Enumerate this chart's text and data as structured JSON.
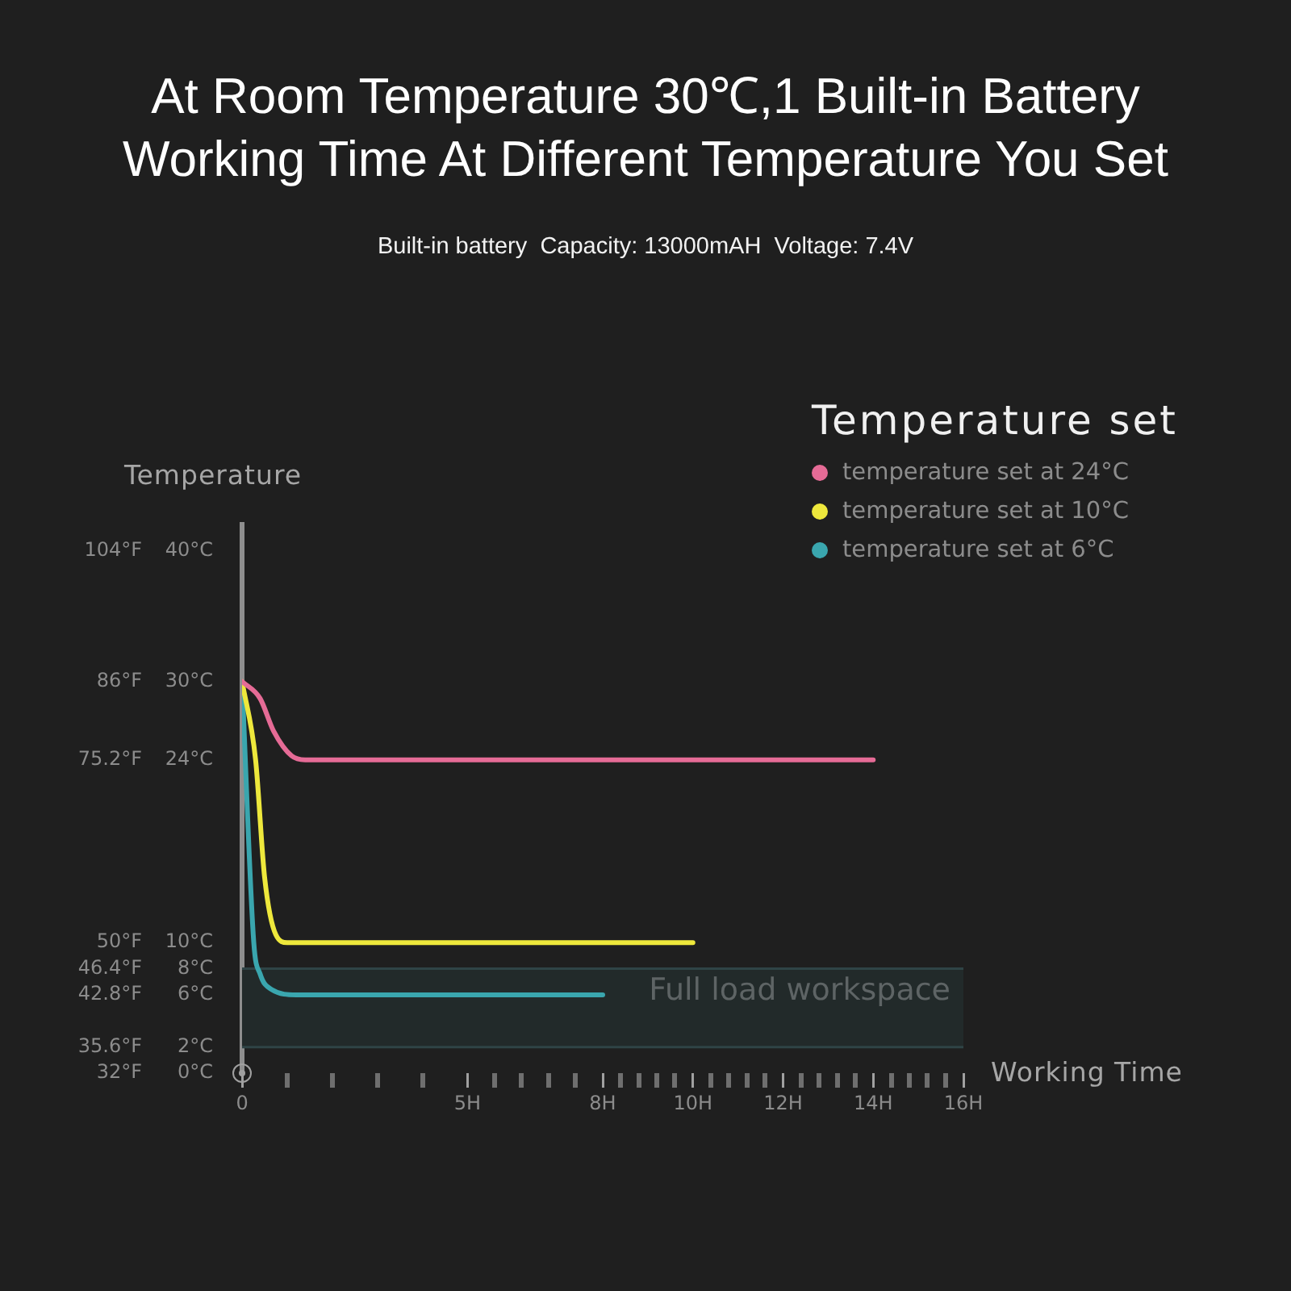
{
  "chart_data": {
    "type": "line",
    "title": "At Room Temperature 30℃,1 Built-in Battery Working Time At Different Temperature You Set",
    "subtitle": "Built-in battery  Capacity: 13000mAH  Voltage: 7.4V",
    "xlabel": "Working Time",
    "ylabel": "Temperature",
    "legend_title": "Temperature set",
    "legend": "top right",
    "series": [
      {
        "name": "temperature set at 24°C",
        "color": "#e56b96",
        "x": [
          0,
          0.4,
          0.7,
          1.1,
          1.4,
          14
        ],
        "values": [
          30,
          28.7,
          26.2,
          24.3,
          24,
          24
        ]
      },
      {
        "name": "temperature set at 10°C",
        "color": "#eee83c",
        "x": [
          0,
          0.3,
          0.5,
          0.75,
          1,
          10
        ],
        "values": [
          30,
          24,
          15,
          10.6,
          10,
          10
        ]
      },
      {
        "name": "temperature set at 6°C",
        "color": "#3aa6ae",
        "x": [
          0,
          0.26,
          0.4,
          0.66,
          1.2,
          8
        ],
        "values": [
          30,
          10,
          7.6,
          6.4,
          6,
          6
        ]
      }
    ],
    "xlim": [
      0,
      16
    ],
    "xticks": [
      0,
      {
        "value": 1,
        "label": null
      },
      {
        "value": 2,
        "label": null
      },
      {
        "value": 3,
        "label": null
      },
      {
        "value": 4,
        "label": null
      },
      {
        "value": 5,
        "label": "5H"
      },
      {
        "value": 5.6,
        "label": null
      },
      {
        "value": 6.2,
        "label": null
      },
      {
        "value": 6.8,
        "label": null
      },
      {
        "value": 7.4,
        "label": null
      },
      {
        "value": 8,
        "label": "8H"
      },
      {
        "value": 8.4,
        "label": null
      },
      {
        "value": 8.8,
        "label": null
      },
      {
        "value": 9.2,
        "label": null
      },
      {
        "value": 9.6,
        "label": null
      },
      {
        "value": 10,
        "label": "10H"
      },
      {
        "value": 10.4,
        "label": null
      },
      {
        "value": 10.8,
        "label": null
      },
      {
        "value": 11.2,
        "label": null
      },
      {
        "value": 11.6,
        "label": null
      },
      {
        "value": 12,
        "label": "12H"
      },
      {
        "value": 12.4,
        "label": null
      },
      {
        "value": 12.8,
        "label": null
      },
      {
        "value": 13.2,
        "label": null
      },
      {
        "value": 13.6,
        "label": null
      },
      {
        "value": 14,
        "label": "14H"
      },
      {
        "value": 14.4,
        "label": null
      },
      {
        "value": 14.8,
        "label": null
      },
      {
        "value": 15.2,
        "label": null
      },
      {
        "value": 15.6,
        "label": null
      },
      {
        "value": 16,
        "label": "16H"
      }
    ],
    "ylim": [
      0,
      42
    ],
    "yticks": [
      {
        "value": 0,
        "label": "0°C"
      },
      {
        "value": 2,
        "label": "2°C"
      },
      {
        "value": 6,
        "label": "6°C"
      },
      {
        "value": 8,
        "label": "8°C"
      },
      {
        "value": 10,
        "label": "10°C"
      },
      {
        "value": 24,
        "label": "24°C"
      },
      {
        "value": 30,
        "label": "30°C"
      },
      {
        "value": 40,
        "label": "40°C"
      }
    ],
    "y2lim": [
      32,
      107.6
    ],
    "y2ticks": [
      {
        "value": 32,
        "label": "32°F"
      },
      {
        "value": 35.6,
        "label": "35.6°F"
      },
      {
        "value": 42.8,
        "label": "42.8°F"
      },
      {
        "value": 46.4,
        "label": "46.4°F"
      },
      {
        "value": 50,
        "label": "50°F"
      },
      {
        "value": 75.2,
        "label": "75.2°F"
      },
      {
        "value": 86,
        "label": "86°F"
      },
      {
        "value": 104,
        "label": "104°F"
      }
    ],
    "bands": [
      {
        "axis": "y",
        "from": 2,
        "to": 8,
        "label": "Full load workspace",
        "color": "#222a2a"
      }
    ]
  }
}
